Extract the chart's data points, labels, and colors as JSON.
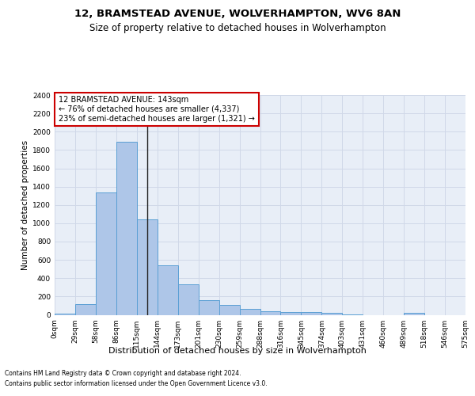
{
  "title_line1": "12, BRAMSTEAD AVENUE, WOLVERHAMPTON, WV6 8AN",
  "title_line2": "Size of property relative to detached houses in Wolverhampton",
  "xlabel": "Distribution of detached houses by size in Wolverhampton",
  "ylabel": "Number of detached properties",
  "footer_line1": "Contains HM Land Registry data © Crown copyright and database right 2024.",
  "footer_line2": "Contains public sector information licensed under the Open Government Licence v3.0.",
  "bar_values": [
    15,
    120,
    1340,
    1890,
    1040,
    540,
    335,
    160,
    110,
    65,
    40,
    30,
    30,
    20,
    5,
    0,
    0,
    20,
    0,
    0
  ],
  "bar_labels": [
    "0sqm",
    "29sqm",
    "58sqm",
    "86sqm",
    "115sqm",
    "144sqm",
    "173sqm",
    "201sqm",
    "230sqm",
    "259sqm",
    "288sqm",
    "316sqm",
    "345sqm",
    "374sqm",
    "403sqm",
    "431sqm",
    "460sqm",
    "489sqm",
    "518sqm",
    "546sqm",
    "575sqm"
  ],
  "bar_color": "#aec6e8",
  "bar_edge_color": "#5a9fd4",
  "highlight_bar_index": 4,
  "highlight_line_color": "#222222",
  "annotation_text": "12 BRAMSTEAD AVENUE: 143sqm\n← 76% of detached houses are smaller (4,337)\n23% of semi-detached houses are larger (1,321) →",
  "annotation_box_color": "#ffffff",
  "annotation_box_edge_color": "#cc0000",
  "ylim": [
    0,
    2400
  ],
  "yticks": [
    0,
    200,
    400,
    600,
    800,
    1000,
    1200,
    1400,
    1600,
    1800,
    2000,
    2200,
    2400
  ],
  "grid_color": "#d0d8e8",
  "background_color": "#e8eef7",
  "fig_background": "#ffffff",
  "title_fontsize": 9.5,
  "subtitle_fontsize": 8.5,
  "ylabel_fontsize": 7.5,
  "xlabel_fontsize": 8,
  "tick_fontsize": 6.5,
  "annot_fontsize": 7,
  "footer_fontsize": 5.5
}
